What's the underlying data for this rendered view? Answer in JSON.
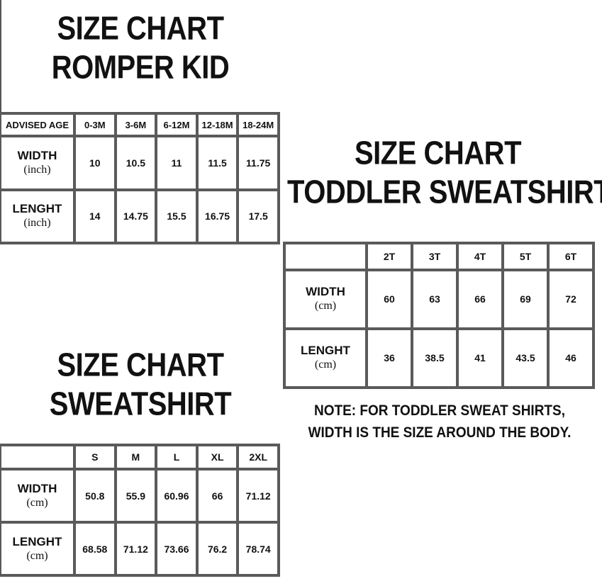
{
  "romper": {
    "title": [
      "SIZE CHART",
      "ROMPER KID"
    ],
    "header_label": "ADVISED AGE",
    "columns": [
      "0-3M",
      "3-6M",
      "6-12M",
      "12-18M",
      "18-24M"
    ],
    "rows": [
      {
        "label": "WIDTH",
        "unit": "(inch)",
        "values": [
          "10",
          "10.5",
          "11",
          "11.5",
          "11.75"
        ]
      },
      {
        "label": "LENGHT",
        "unit": "(inch)",
        "values": [
          "14",
          "14.75",
          "15.5",
          "16.75",
          "17.5"
        ]
      }
    ]
  },
  "toddler": {
    "title": [
      "SIZE CHART",
      "TODDLER SWEATSHIRT"
    ],
    "columns": [
      "2T",
      "3T",
      "4T",
      "5T",
      "6T"
    ],
    "rows": [
      {
        "label": "WIDTH",
        "unit": "(cm)",
        "values": [
          "60",
          "63",
          "66",
          "69",
          "72"
        ]
      },
      {
        "label": "LENGHT",
        "unit": "(cm)",
        "values": [
          "36",
          "38.5",
          "41",
          "43.5",
          "46"
        ]
      }
    ],
    "note": [
      "NOTE: FOR TODDLER SWEAT SHIRTS,",
      "WIDTH IS THE SIZE AROUND THE BODY."
    ]
  },
  "sweatshirt": {
    "title": [
      "SIZE CHART",
      "SWEATSHIRT"
    ],
    "columns": [
      "S",
      "M",
      "L",
      "XL",
      "2XL"
    ],
    "rows": [
      {
        "label": "WIDTH",
        "unit": "(cm)",
        "values": [
          "50.8",
          "55.9",
          "60.96",
          "66",
          "71.12"
        ]
      },
      {
        "label": "LENGHT",
        "unit": "(cm)",
        "values": [
          "68.58",
          "71.12",
          "73.66",
          "76.2",
          "78.74"
        ]
      }
    ]
  },
  "colors": {
    "border": "#5a5a5a",
    "text": "#111111",
    "background": "#ffffff"
  }
}
